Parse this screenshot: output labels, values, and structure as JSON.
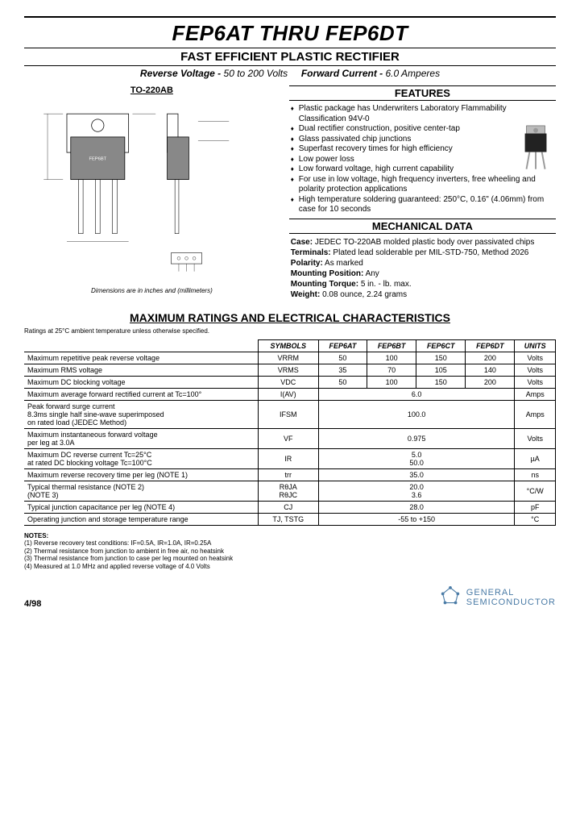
{
  "title": "FEP6AT THRU FEP6DT",
  "subtitle": "FAST EFFICIENT PLASTIC RECTIFIER",
  "specline": {
    "rv_label": "Reverse Voltage - ",
    "rv_val": "50 to 200 Volts",
    "fc_label": "Forward Current - ",
    "fc_val": "6.0 Amperes"
  },
  "pkg_label": "TO-220AB",
  "dim_note": "Dimensions are in inches and (millimeters)",
  "feat_head": "FEATURES",
  "features": [
    "Plastic package has Underwriters Laboratory Flammability Classification 94V-0",
    "Dual rectifier construction, positive center-tap",
    "Glass passivated chip junctions",
    "Superfast recovery times for high efficiency",
    "Low power loss",
    "Low forward voltage, high current capability",
    "For use in low voltage, high frequency inverters, free wheeling and polarity protection applications",
    "High temperature soldering guaranteed: 250°C, 0.16\" (4.06mm) from case for 10 seconds"
  ],
  "mech_head": "MECHANICAL DATA",
  "mech": {
    "case_l": "Case:",
    "case_v": "JEDEC TO-220AB molded plastic body over passivated chips",
    "term_l": "Terminals:",
    "term_v": "Plated lead solderable per MIL-STD-750, Method 2026",
    "pol_l": "Polarity:",
    "pol_v": "As marked",
    "mp_l": "Mounting Position:",
    "mp_v": "Any",
    "mt_l": "Mounting Torque:",
    "mt_v": "5 in. - lb. max.",
    "wt_l": "Weight:",
    "wt_v": "0.08 ounce, 2.24 grams"
  },
  "main_sect": "MAXIMUM RATINGS AND ELECTRICAL CHARACTERISTICS",
  "ratings_note": "Ratings at 25°C ambient temperature unless otherwise specified.",
  "cols": {
    "sym": "SYMBOLS",
    "c1": "FEP6AT",
    "c2": "FEP6BT",
    "c3": "FEP6CT",
    "c4": "FEP6DT",
    "u": "UNITS"
  },
  "rows": [
    {
      "lbl": "Maximum repetitive peak reverse voltage",
      "sym": "VRRM",
      "v": [
        "50",
        "100",
        "150",
        "200"
      ],
      "u": "Volts"
    },
    {
      "lbl": "Maximum RMS voltage",
      "sym": "VRMS",
      "v": [
        "35",
        "70",
        "105",
        "140"
      ],
      "u": "Volts"
    },
    {
      "lbl": "Maximum DC blocking voltage",
      "sym": "VDC",
      "v": [
        "50",
        "100",
        "150",
        "200"
      ],
      "u": "Volts"
    },
    {
      "lbl": "Maximum average forward rectified current at Tc=100°",
      "sym": "I(AV)",
      "span": "6.0",
      "u": "Amps"
    },
    {
      "lbl": "Peak forward surge current\n8.3ms single half sine-wave superimposed\non rated load (JEDEC Method)",
      "sym": "IFSM",
      "span": "100.0",
      "u": "Amps"
    },
    {
      "lbl": "Maximum instantaneous forward voltage\nper leg at 3.0A",
      "sym": "VF",
      "span": "0.975",
      "u": "Volts"
    },
    {
      "lbl": "Maximum DC reverse current          Tc=25°C\nat rated DC blocking voltage          Tc=100°C",
      "sym": "IR",
      "span": "5.0\n50.0",
      "u": "µA"
    },
    {
      "lbl": "Maximum reverse recovery time per leg (NOTE 1)",
      "sym": "trr",
      "span": "35.0",
      "u": "ns"
    },
    {
      "lbl": "Typical thermal resistance (NOTE 2)\n                                              (NOTE 3)",
      "sym": "RθJA\nRθJC",
      "span": "20.0\n3.6",
      "u": "°C/W"
    },
    {
      "lbl": "Typical junction capacitance per leg (NOTE 4)",
      "sym": "CJ",
      "span": "28.0",
      "u": "pF"
    },
    {
      "lbl": "Operating junction and storage temperature range",
      "sym": "TJ, TSTG",
      "span": "-55 to +150",
      "u": "°C"
    }
  ],
  "notes_head": "NOTES:",
  "notes": [
    "(1) Reverse recovery test conditions: IF=0.5A, IR=1.0A, IR=0.25A",
    "(2) Thermal resistance from junction to ambient in free air, no heatsink",
    "(3) Thermal resistance from junction to case per leg mounted on heatsink",
    "(4) Measured at 1.0 MHz and applied reverse voltage of 4.0 Volts"
  ],
  "date": "4/98",
  "company1": "GENERAL",
  "company2": "SEMICONDUCTOR"
}
